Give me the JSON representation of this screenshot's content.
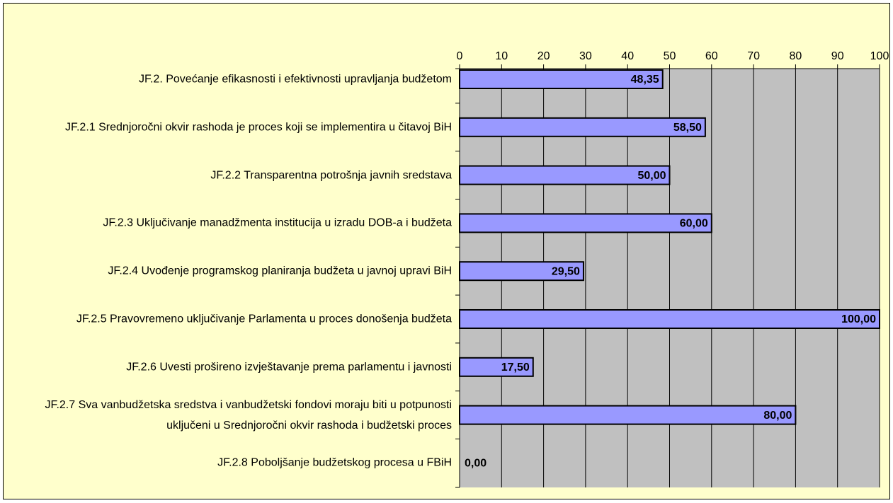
{
  "chart_data": {
    "type": "bar",
    "orientation": "horizontal",
    "categories": [
      "JF.2. Povećanje efikasnosti i efektivnosti upravljanja budžetom",
      "JF.2.1 Srednjoročni okvir rashoda je proces koji se implementira u čitavoj BiH",
      "JF.2.2 Transparentna potrošnja javnih sredstava",
      "JF.2.3 Uključivanje manadžmenta institucija u izradu DOB-a i budžeta",
      "JF.2.4 Uvođenje programskog planiranja budžeta u javnoj upravi BiH",
      "JF.2.5 Pravovremeno uključivanje Parlamenta u proces donošenja budžeta",
      "JF.2.6 Uvesti prošireno izvještavanje prema parlamentu i javnosti",
      "JF.2.7 Sva vanbudžetska sredstva i vanbudžetski fondovi moraju biti u potpunosti uključeni u Srednjoročni okvir rashoda i budžetski proces",
      "JF.2.8 Poboljšanje budžetskog procesa u FBiH"
    ],
    "values": [
      48.35,
      58.5,
      50,
      60,
      29.5,
      100,
      17.5,
      80,
      0
    ],
    "value_labels": [
      "48,35",
      "58,50",
      "50,00",
      "60,00",
      "29,50",
      "100,00",
      "17,50",
      "80,00",
      "0,00"
    ],
    "color": "#9999ff",
    "xlim": [
      0,
      100
    ],
    "xticks": [
      0,
      10,
      20,
      30,
      40,
      50,
      60,
      70,
      80,
      90,
      100
    ],
    "grid": true
  }
}
